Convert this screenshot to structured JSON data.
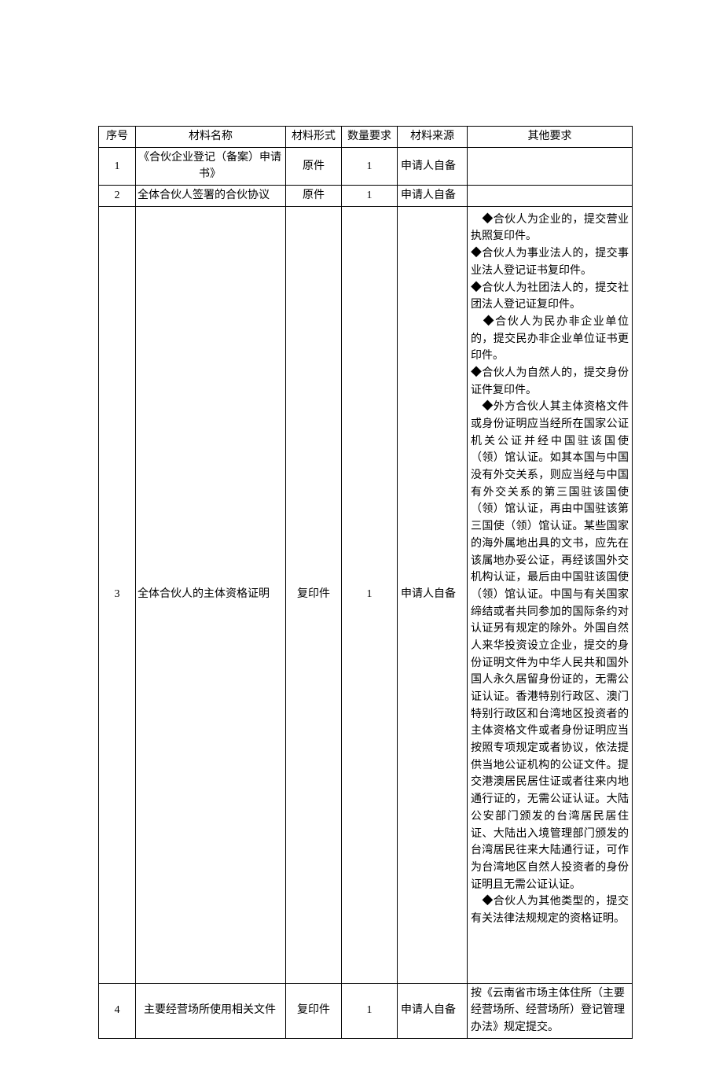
{
  "columns": {
    "seq": "序号",
    "name": "材料名称",
    "form": "材料形式",
    "qty": "数量要求",
    "src": "材料来源",
    "other": "其他要求"
  },
  "rows": [
    {
      "seq": "1",
      "name": "《合伙企业登记（备案）申请书》",
      "form": "原件",
      "qty": "1",
      "src": "申请人自备",
      "other": ""
    },
    {
      "seq": "2",
      "name": "全体合伙人签署的合伙协议",
      "form": "原件",
      "qty": "1",
      "src": "申请人自备",
      "other": ""
    },
    {
      "seq": "3",
      "name": "全体合伙人的主体资格证明",
      "form": "复印件",
      "qty": "1",
      "src": "申请人自备",
      "other": "　◆合伙人为企业的，提交营业执照复印件。\n◆合伙人为事业法人的，提交事业法人登记证书复印件。\n◆合伙人为社团法人的，提交社团法人登记证复印件。\n　◆合伙人为民办非企业单位的，提交民办非企业单位证书更印件。\n◆合伙人为自然人的，提交身份证件复印件。\n　◆外方合伙人其主体资格文件或身份证明应当经所在国家公证机关公证并经中国驻该国使（领）馆认证。如其本国与中国没有外交关系，则应当经与中国有外交关系的第三国驻该国使（领）馆认证，再由中国驻该第三国使（领）馆认证。某些国家的海外属地出具的文书，应先在该属地办妥公证，再经该国外交机构认证，最后由中国驻该国使（领）馆认证。中国与有关国家缔结或者共同参加的国际条约对认证另有规定的除外。外国自然人来华投资设立企业，提交的身份证明文件为中华人民共和国外国人永久居留身份证的，无需公证认证。香港特别行政区、澳门特别行政区和台湾地区投资者的主体资格文件或者身份证明应当按照专项规定或者协议，依法提供当地公证机构的公证文件。提交港澳居民居住证或者往来内地通行证的，无需公证认证。大陆公安部门颁发的台湾居民居住证、大陆出入境管理部门颁发的台湾居民往来大陆通行证，可作为台湾地区自然人投资者的身份证明且无需公证认证。\n　◆合伙人为其他类型的，提交有关法律法规规定的资格证明。"
    },
    {
      "seq": "4",
      "name": "主要经营场所使用相关文件",
      "form": "复印件",
      "qty": "1",
      "src": "申请人自备",
      "other": "按《云南省市场主体住所（主要经营场所、经营场所）登记管理办法》规定提交。"
    }
  ]
}
